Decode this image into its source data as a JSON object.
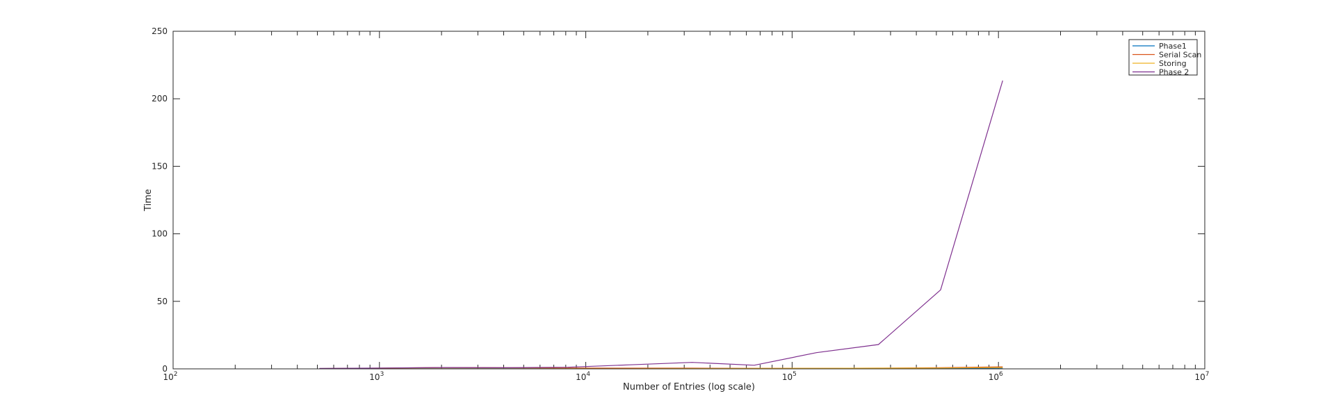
{
  "chart_data": {
    "type": "line",
    "xlabel": "Number of Entries (log scale)",
    "ylabel": "Time",
    "x_scale": "log",
    "xlim": [
      100,
      10000000
    ],
    "ylim": [
      0,
      250
    ],
    "x_ticks": [
      {
        "value": 100,
        "base": "10",
        "exp": "2"
      },
      {
        "value": 1000,
        "base": "10",
        "exp": "3"
      },
      {
        "value": 10000,
        "base": "10",
        "exp": "4"
      },
      {
        "value": 100000,
        "base": "10",
        "exp": "5"
      },
      {
        "value": 1000000,
        "base": "10",
        "exp": "6"
      },
      {
        "value": 10000000,
        "base": "10",
        "exp": "7"
      }
    ],
    "y_ticks": [
      "0",
      "50",
      "100",
      "150",
      "200",
      "250"
    ],
    "grid": false,
    "legend_position": "top-right",
    "x": [
      512,
      1024,
      2048,
      4096,
      8192,
      16384,
      32768,
      65536,
      131072,
      262144,
      524288,
      1048576
    ],
    "series": [
      {
        "name": "Phase1",
        "color": "#0072BD",
        "values": [
          0.05,
          0.1,
          0.1,
          0.1,
          0.1,
          0.1,
          0.1,
          0.1,
          0.1,
          0.2,
          0.3,
          0.6
        ]
      },
      {
        "name": "Serial Scan",
        "color": "#D95319",
        "values": [
          0.2,
          0.5,
          1.0,
          0.8,
          0.6,
          0.5,
          0.5,
          0.4,
          0.4,
          0.5,
          0.8,
          1.5
        ]
      },
      {
        "name": "Storing",
        "color": "#EDB120",
        "values": [
          0.05,
          0.1,
          0.1,
          0.1,
          0.1,
          0.1,
          0.2,
          0.3,
          0.4,
          0.5,
          0.6,
          1.0
        ]
      },
      {
        "name": "Phase 2",
        "color": "#7E2F8E",
        "values": [
          0.3,
          0.6,
          1.0,
          0.8,
          1.2,
          3.0,
          4.8,
          2.7,
          12.0,
          18.0,
          58.5,
          213.5
        ]
      }
    ]
  }
}
